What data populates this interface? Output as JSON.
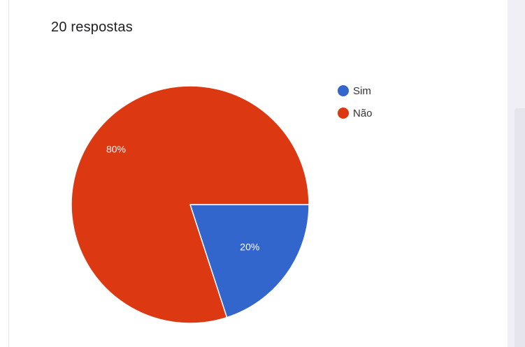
{
  "response_count": "20 respostas",
  "chart_data": {
    "type": "pie",
    "title": "",
    "categories": [
      "Sim",
      "Não"
    ],
    "values": [
      20,
      80
    ],
    "labels": [
      "20%",
      "80%"
    ],
    "colors": [
      "#3366cc",
      "#dc3912"
    ],
    "legend_position": "right",
    "start_angle_deg": 90,
    "direction": "clockwise"
  }
}
